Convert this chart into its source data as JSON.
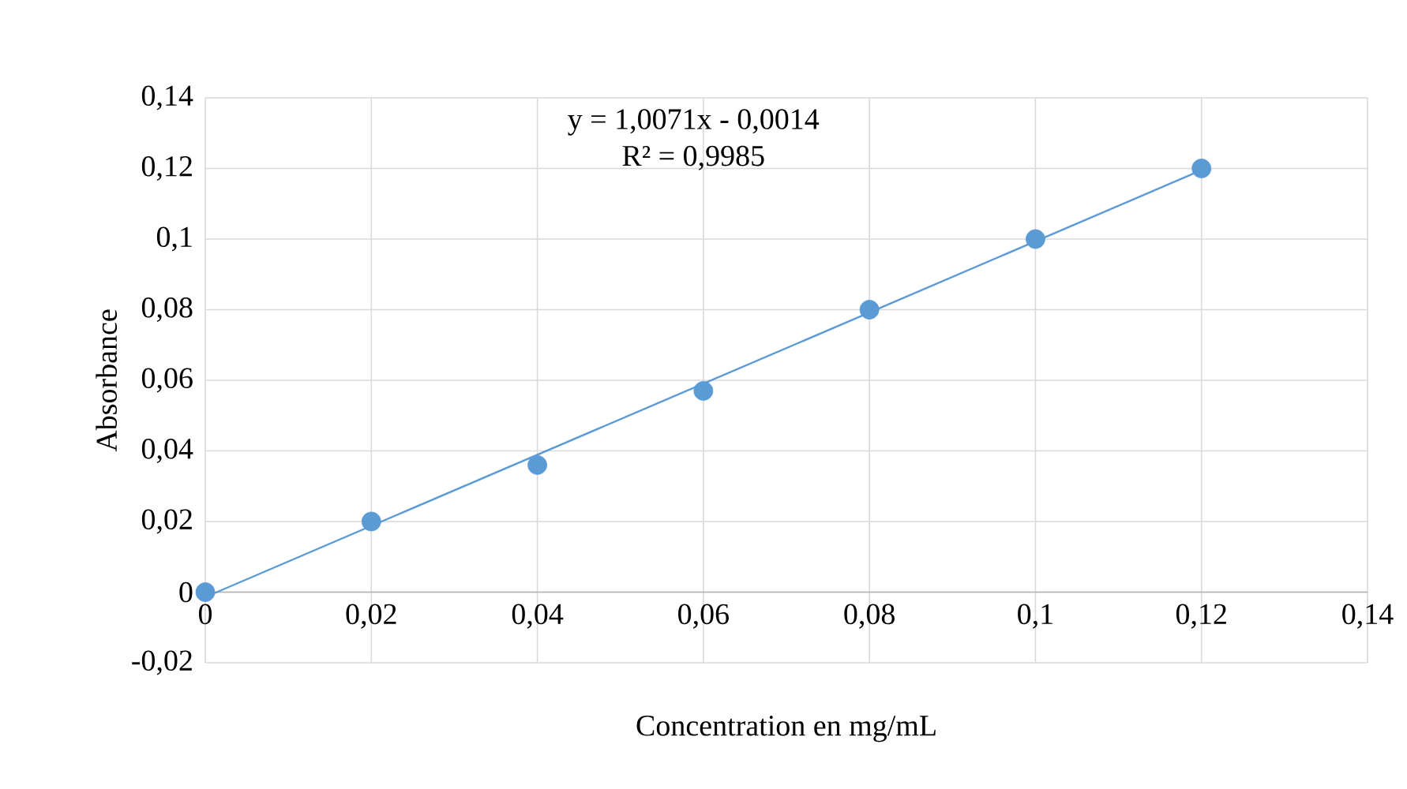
{
  "chart_data": {
    "type": "scatter",
    "xlabel": "Concentration en mg/mL",
    "ylabel": "Absorbance",
    "annotations": [
      "y = 1,0071x - 0,0014",
      "R² = 0,9985"
    ],
    "series": [
      {
        "color": "#5b9bd5",
        "marker": "circle",
        "x": [
          0,
          0.02,
          0.04,
          0.06,
          0.08,
          0.1,
          0.12
        ],
        "values": [
          0,
          0.02,
          0.036,
          0.057,
          0.08,
          0.1,
          0.12
        ]
      },
      {
        "type": "line",
        "color": "#5b9bd5",
        "marker": "none",
        "x": [
          0,
          0.12
        ],
        "values": [
          -0.0014,
          0.1195
        ]
      }
    ],
    "xlim": [
      0,
      0.14
    ],
    "ylim": [
      -0.02,
      0.14
    ],
    "xticks": [
      0,
      {
        "value": 0.02,
        "label": "0,02"
      },
      {
        "value": 0.04,
        "label": "0,04"
      },
      {
        "value": 0.06,
        "label": "0,06"
      },
      {
        "value": 0.08,
        "label": "0,08"
      },
      {
        "value": 0.1,
        "label": "0,1"
      },
      {
        "value": 0.12,
        "label": "0,12"
      },
      {
        "value": 0.14,
        "label": "0,14"
      }
    ],
    "yticks": [
      {
        "value": -0.02,
        "label": "-0,02"
      },
      0,
      {
        "value": 0.02,
        "label": "0,02"
      },
      {
        "value": 0.04,
        "label": "0,04"
      },
      {
        "value": 0.06,
        "label": "0,06"
      },
      {
        "value": 0.08,
        "label": "0,08"
      },
      {
        "value": 0.1,
        "label": "0,1"
      },
      {
        "value": 0.12,
        "label": "0,12"
      },
      {
        "value": 0.14,
        "label": "0,14"
      }
    ],
    "grid": true
  }
}
